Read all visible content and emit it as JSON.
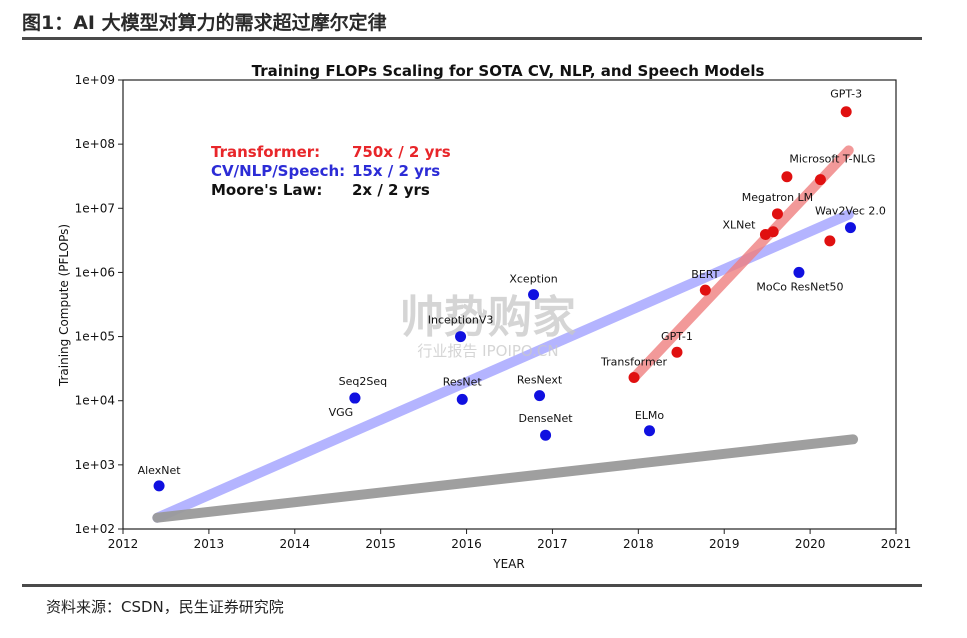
{
  "figure_title": "图1：AI 大模型对算力的需求超过摩尔定律",
  "source": "资料来源：CSDN，民生证券研究院",
  "watermark": {
    "main": "帅势购家",
    "sub": "行业报告 IPOIPO.CN"
  },
  "chart_data": {
    "type": "scatter",
    "title": "Training FLOPs Scaling for SOTA CV, NLP, and Speech Models",
    "xlabel": "YEAR",
    "ylabel": "Training Compute (PFLOPs)",
    "xlim": [
      2012,
      2021
    ],
    "ylim_log10": [
      2,
      9
    ],
    "yscale": "log",
    "grid": false,
    "x_ticks": [
      "2012",
      "2013",
      "2014",
      "2015",
      "2016",
      "2017",
      "2018",
      "2019",
      "2020",
      "2021"
    ],
    "y_ticks": [
      "1e+02",
      "1e+03",
      "1e+04",
      "1e+05",
      "1e+06",
      "1e+07",
      "1e+08",
      "1e+09"
    ],
    "legend_text": [
      {
        "label": "Transformer:",
        "value": "750x / 2 yrs",
        "color": "#e8262a"
      },
      {
        "label": "CV/NLP/Speech:",
        "value": "15x / 2 yrs",
        "color": "#2c2cd6"
      },
      {
        "label": "Moore's Law:",
        "value": "2x / 2 yrs",
        "color": "#111111"
      }
    ],
    "series": [
      {
        "group": "CV/NLP/Speech",
        "color": "#1010e0",
        "points": [
          {
            "name": "AlexNet",
            "x": 2012.42,
            "y": 470
          },
          {
            "name": "VGG",
            "x": 2014.7,
            "y": 11000
          },
          {
            "name": "Seq2Seq",
            "x": 2014.7,
            "y": 11000
          },
          {
            "name": "InceptionV3",
            "x": 2015.93,
            "y": 100000
          },
          {
            "name": "ResNet",
            "x": 2015.95,
            "y": 10500
          },
          {
            "name": "Xception",
            "x": 2016.78,
            "y": 450000
          },
          {
            "name": "ResNext",
            "x": 2016.85,
            "y": 12000
          },
          {
            "name": "DenseNet",
            "x": 2016.92,
            "y": 2900
          },
          {
            "name": "ELMo",
            "x": 2018.13,
            "y": 3400
          },
          {
            "name": "MoCo ResNet50",
            "x": 2019.87,
            "y": 1000000
          },
          {
            "name": "Wav2Vec 2.0",
            "x": 2020.47,
            "y": 5000000
          }
        ]
      },
      {
        "group": "Transformer",
        "color": "#e01010",
        "points": [
          {
            "name": "Transformer",
            "x": 2017.95,
            "y": 23000
          },
          {
            "name": "GPT-1",
            "x": 2018.45,
            "y": 57000
          },
          {
            "name": "BERT",
            "x": 2018.78,
            "y": 530000
          },
          {
            "name": "XLNet",
            "x": 2019.48,
            "y": 3900000
          },
          {
            "name": "Megatron LM",
            "x": 2019.62,
            "y": 8200000
          },
          {
            "name": "Microsoft T-NLG",
            "x": 2020.12,
            "y": 28000000
          },
          {
            "name": "GPT-3",
            "x": 2020.42,
            "y": 320000000
          },
          {
            "name": "",
            "x": 2019.57,
            "y": 4300000
          },
          {
            "name": "",
            "x": 2019.73,
            "y": 31000000
          },
          {
            "name": "",
            "x": 2020.23,
            "y": 3100000
          }
        ]
      }
    ],
    "trend_lines": [
      {
        "group": "CV/NLP/Speech",
        "color": "#9b9bff",
        "from": {
          "x": 2012.4,
          "y": 150
        },
        "to": {
          "x": 2020.45,
          "y": 8000000
        }
      },
      {
        "group": "Transformer",
        "color": "#f08080",
        "from": {
          "x": 2017.95,
          "y": 23000
        },
        "to": {
          "x": 2020.45,
          "y": 80000000
        }
      },
      {
        "group": "Moore's Law",
        "color": "#9a9a9a",
        "from": {
          "x": 2012.4,
          "y": 150
        },
        "to": {
          "x": 2020.5,
          "y": 2500
        }
      }
    ]
  }
}
